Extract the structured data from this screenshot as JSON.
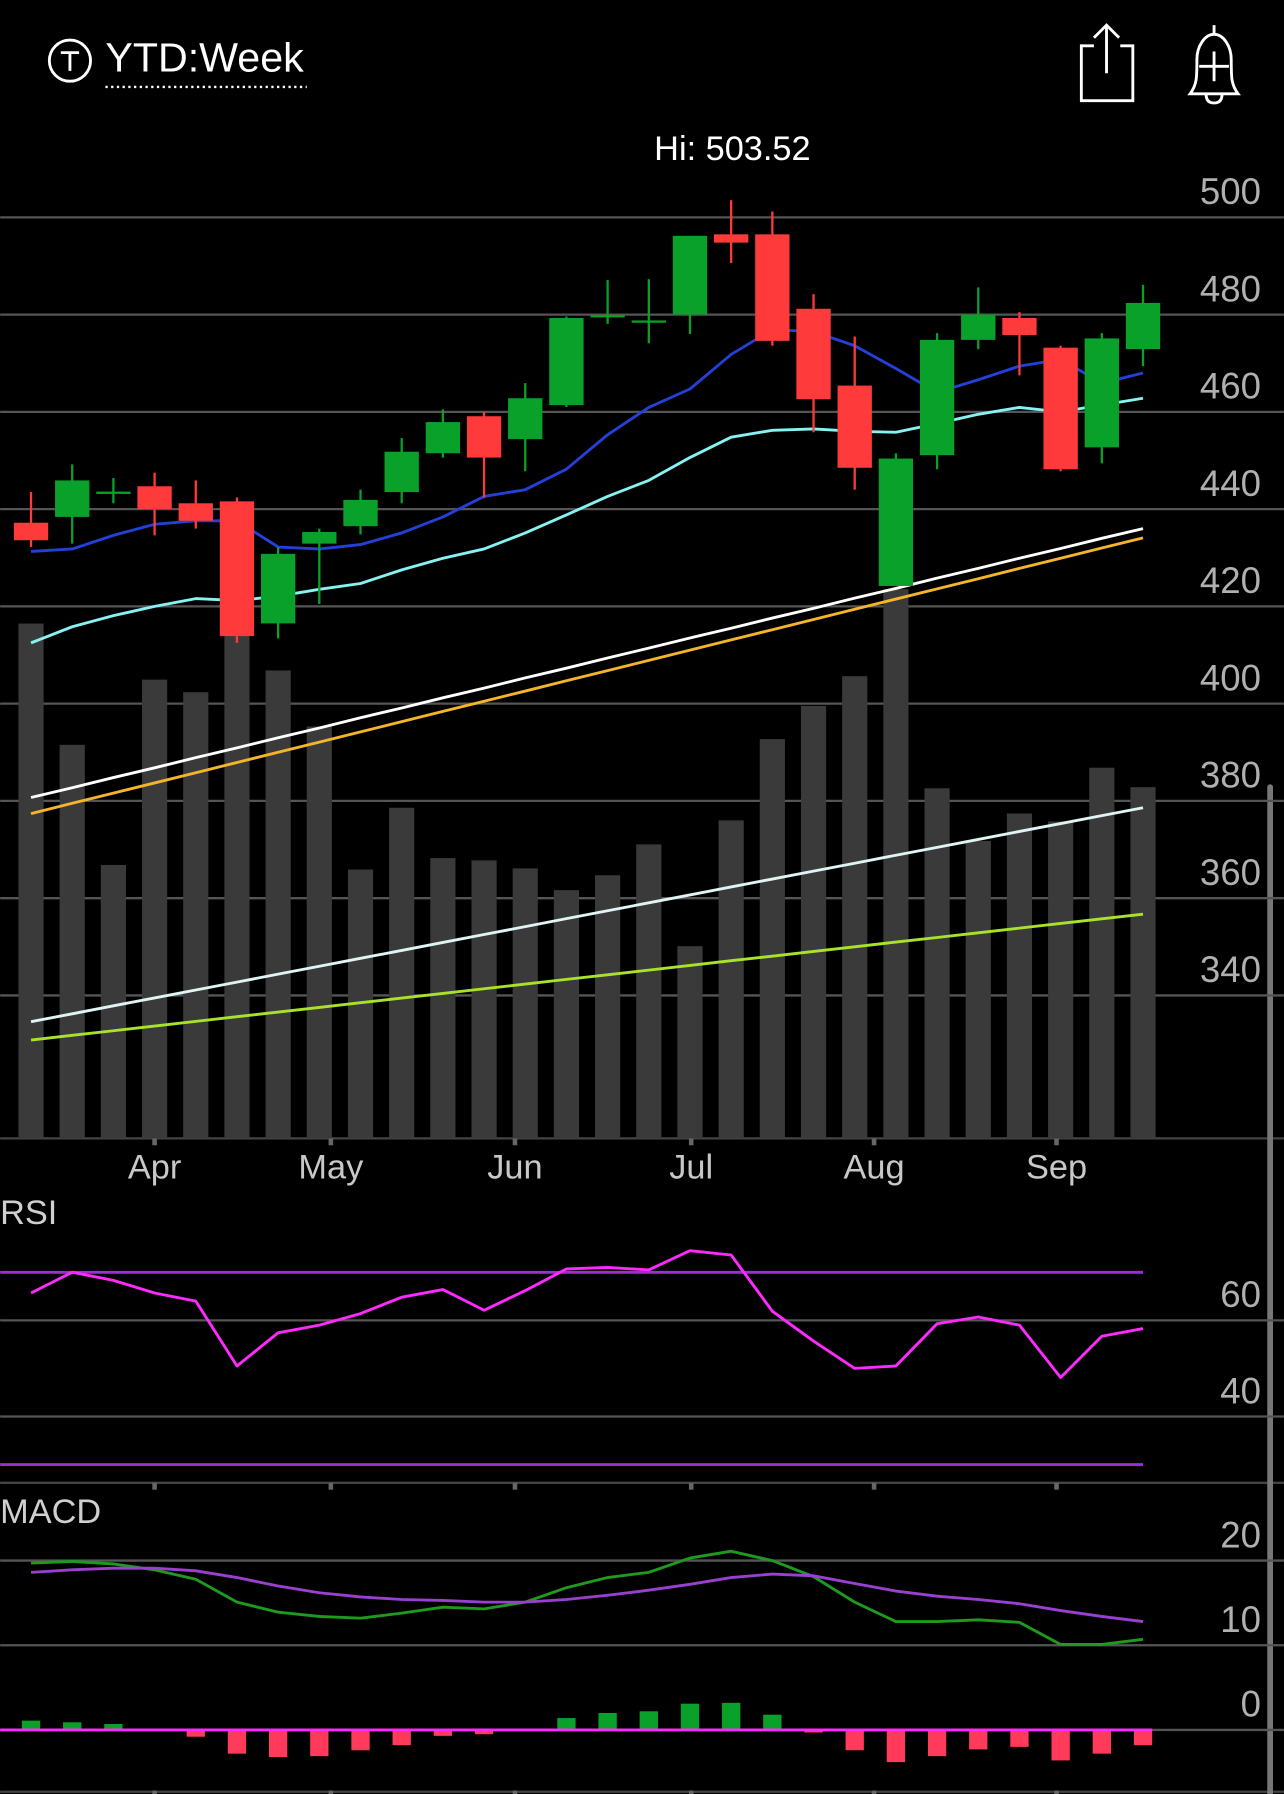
{
  "header": {
    "title": "YTD:Week"
  },
  "chart_data": [
    {
      "type": "candlestick",
      "annotation": "Hi: 503.52",
      "open": [
        437.2,
        438.4,
        443.3,
        444.7,
        441.2,
        441.6,
        416.5,
        432.9,
        436.5,
        443.5,
        451.5,
        459.1,
        454.4,
        461.4,
        479.6,
        478.5,
        480.0,
        496.5,
        496.5,
        481.2,
        465.4,
        424.2,
        451.1,
        474.8,
        479.3,
        473.2,
        452.7,
        472.9
      ],
      "high": [
        443.5,
        449.2,
        446.4,
        447.5,
        445.9,
        442.4,
        432.2,
        436.0,
        444.0,
        454.6,
        460.5,
        460.0,
        465.9,
        479.6,
        487.1,
        487.3,
        496.2,
        503.52,
        501.2,
        484.2,
        475.5,
        451.5,
        476.2,
        485.6,
        480.5,
        473.6,
        476.2,
        486.1
      ],
      "low": [
        432.2,
        432.9,
        441.2,
        434.6,
        436.0,
        412.5,
        413.4,
        420.5,
        434.8,
        441.2,
        450.6,
        442.4,
        447.8,
        461.0,
        478.1,
        474.1,
        476.0,
        490.6,
        473.6,
        455.8,
        444.0,
        424.2,
        448.2,
        472.9,
        467.5,
        447.8,
        449.4,
        469.4
      ],
      "close": [
        433.6,
        445.9,
        443.6,
        440.0,
        437.6,
        413.9,
        430.8,
        435.3,
        441.9,
        451.8,
        457.9,
        450.6,
        462.8,
        479.3,
        479.9,
        478.8,
        496.2,
        494.8,
        474.6,
        462.6,
        448.5,
        450.4,
        474.8,
        480.0,
        475.8,
        448.2,
        475.1,
        482.4
      ],
      "up_color": "#0aa12a",
      "down_color": "#ff3a3a",
      "series": [
        {
          "color": "#2340d8",
          "values": [
            431.3,
            431.8,
            434.6,
            436.9,
            437.6,
            437.6,
            432.2,
            431.8,
            432.7,
            435.1,
            438.4,
            442.6,
            444.0,
            448.2,
            455.3,
            460.9,
            464.7,
            471.8,
            476.9,
            476.5,
            473.6,
            468.9,
            464.0,
            466.6,
            469.4,
            470.8,
            465.9,
            468.0
          ]
        },
        {
          "color": "#86f2f2",
          "values": [
            412.5,
            415.8,
            418.1,
            420.0,
            421.6,
            421.2,
            422.1,
            423.5,
            424.7,
            427.5,
            429.9,
            431.8,
            435.1,
            438.8,
            442.6,
            445.9,
            450.6,
            454.8,
            456.2,
            456.5,
            456.0,
            455.8,
            457.6,
            459.5,
            460.9,
            460.0,
            461.4,
            462.8
          ]
        },
        {
          "color": "#ffffff",
          "values": [
            380.7,
            382.7,
            384.8,
            386.8,
            388.9,
            390.9,
            393.0,
            395.0,
            397.1,
            399.1,
            401.2,
            403.2,
            405.3,
            407.3,
            409.4,
            411.4,
            413.5,
            415.5,
            417.6,
            419.6,
            421.7,
            423.7,
            425.8,
            427.8,
            429.9,
            431.9,
            434.0,
            436.0
          ]
        },
        {
          "color": "#f5b52a",
          "values": [
            377.4,
            379.5,
            381.6,
            383.7,
            385.8,
            387.9,
            390.0,
            392.1,
            394.2,
            396.3,
            398.4,
            400.5,
            402.6,
            404.7,
            406.8,
            408.9,
            411.0,
            413.1,
            415.2,
            417.3,
            419.4,
            421.5,
            423.6,
            425.7,
            427.8,
            429.9,
            432.0,
            434.1
          ]
        }
      ],
      "volume": [
        450,
        344,
        239,
        401,
        390,
        455,
        409,
        360,
        235,
        289,
        245,
        243,
        236,
        217,
        230,
        257,
        168,
        278,
        349,
        378,
        404,
        480,
        306,
        260,
        284,
        277,
        324,
        307
      ],
      "volume_color": "#3a3a3a",
      "volume_ylim": [
        0,
        480
      ],
      "volume_series": [
        {
          "color": "#dff4f4",
          "values": [
            102,
            108.9,
            115.9,
            122.8,
            129.7,
            136.6,
            143.6,
            150.5,
            157.4,
            164.3,
            171.3,
            178.2,
            185.1,
            192.1,
            199,
            205.9,
            212.8,
            219.8,
            226.7,
            233.6,
            240.5,
            247.5,
            254.4,
            261.3,
            268.3,
            275.2,
            282.1,
            289
          ]
        },
        {
          "color": "#a8e32a",
          "values": [
            86,
            90.1,
            94.1,
            98.2,
            102.3,
            106.4,
            110.4,
            114.5,
            118.6,
            122.7,
            126.7,
            130.8,
            134.9,
            139,
            143,
            147.1,
            151.2,
            155.3,
            159.3,
            163.4,
            167.5,
            171.6,
            175.6,
            179.7,
            183.8,
            187.9,
            191.9,
            196
          ]
        }
      ],
      "xlim": [
        -0.75,
        30.42
      ],
      "xticks": [
        {
          "value": 3,
          "label": "Apr"
        },
        {
          "value": 7.28,
          "label": "May"
        },
        {
          "value": 11.75,
          "label": "Jun"
        },
        {
          "value": 16.03,
          "label": "Jul"
        },
        {
          "value": 20.47,
          "label": "Aug"
        },
        {
          "value": 24.9,
          "label": "Sep"
        }
      ],
      "ylim": [
        310.6,
        509.4
      ],
      "yticks": [
        500,
        480,
        460,
        440,
        420,
        400,
        380,
        360,
        340
      ],
      "grid": true
    },
    {
      "type": "line",
      "title": "RSI",
      "series": [
        {
          "color": "#ff2aff",
          "values": [
            65.7,
            70.0,
            68.3,
            65.7,
            64.0,
            50.5,
            57.4,
            59.0,
            61.4,
            64.8,
            66.4,
            62.1,
            66.2,
            70.7,
            71.0,
            70.5,
            74.5,
            73.6,
            61.9,
            55.7,
            50.0,
            50.5,
            59.3,
            60.7,
            59.0,
            48.1,
            56.7,
            58.3
          ]
        }
      ],
      "levels": [
        70,
        30
      ],
      "level_color": "#9a30d0",
      "xlim": [
        -0.75,
        30.42
      ],
      "ylim": [
        26.2,
        85.95
      ],
      "yticks": [
        60,
        40
      ],
      "grid": true
    },
    {
      "type": "macd",
      "title": "MACD",
      "series": [
        {
          "color": "#1e9a1e",
          "values": [
            19.7,
            19.9,
            19.6,
            18.9,
            17.8,
            15.1,
            13.9,
            13.4,
            13.2,
            13.8,
            14.5,
            14.3,
            15.1,
            16.8,
            18.0,
            18.6,
            20.3,
            21.1,
            20.0,
            18.1,
            15.1,
            12.8,
            12.8,
            13.0,
            12.7,
            10.1,
            10.1,
            10.7
          ]
        },
        {
          "color": "#9a40d0",
          "values": [
            18.6,
            18.9,
            19.1,
            19.1,
            18.8,
            18.0,
            17.0,
            16.2,
            15.7,
            15.4,
            15.3,
            15.1,
            15.1,
            15.4,
            15.9,
            16.5,
            17.2,
            18.0,
            18.4,
            18.2,
            17.3,
            16.4,
            15.8,
            15.4,
            14.9,
            14.1,
            13.4,
            12.8
          ]
        }
      ],
      "histogram": [
        1.1,
        0.9,
        0.7,
        0,
        -0.8,
        -2.8,
        -3.2,
        -3.1,
        -2.4,
        -1.8,
        -0.7,
        -0.5,
        0,
        1.4,
        2.0,
        2.2,
        3.1,
        3.2,
        1.8,
        -0.3,
        -2.4,
        -3.8,
        -3.1,
        -2.3,
        -2.0,
        -3.6,
        -2.8,
        -1.8
      ],
      "up_color": "#0aa12a",
      "down_color": "#ff3a5a",
      "zero_color": "#ff2aff",
      "xlim": [
        -0.75,
        30.42
      ],
      "ylim": [
        -7.16,
        27.97
      ],
      "yticks": [
        20,
        10,
        0
      ],
      "grid": true
    }
  ]
}
